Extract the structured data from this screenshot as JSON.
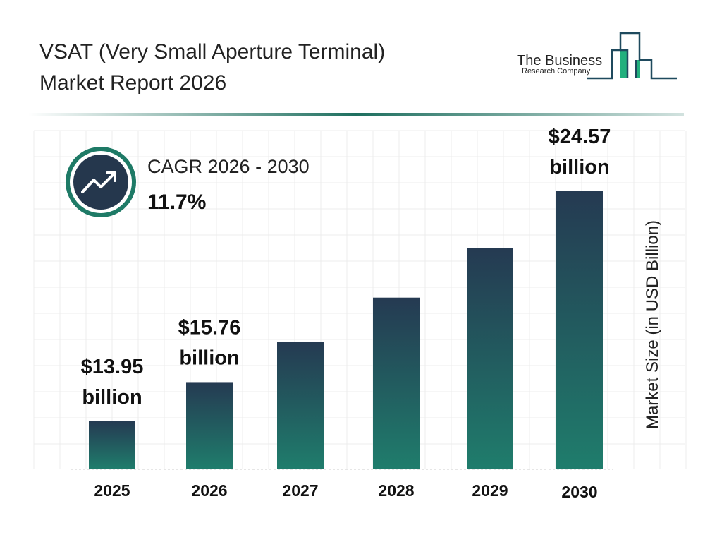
{
  "header": {
    "title_line1": "VSAT (Very Small Aperture Terminal)",
    "title_line2": "Market Report 2026"
  },
  "logo": {
    "line1": "The Business",
    "line2": "Research Company"
  },
  "cagr": {
    "label": "CAGR 2026 - 2030",
    "value": "11.7%",
    "icon": "trending-up-icon"
  },
  "colors": {
    "bar_top": "#253a52",
    "bar_bottom": "#1f7d6c",
    "accent": "#1e6f5f"
  },
  "chart_data": {
    "type": "bar",
    "categories": [
      "2025",
      "2026",
      "2027",
      "2028",
      "2029",
      "2030"
    ],
    "values": [
      13.95,
      15.76,
      17.6,
      19.66,
      21.96,
      24.57
    ],
    "data_labels": [
      {
        "index": 0,
        "value": "$13.95",
        "unit": "billion"
      },
      {
        "index": 1,
        "value": "$15.76",
        "unit": "billion"
      },
      {
        "index": 5,
        "value": "$24.57",
        "unit": "billion"
      }
    ],
    "ylabel": "Market Size (in USD Billion)",
    "xlabel": "",
    "grid": true
  }
}
